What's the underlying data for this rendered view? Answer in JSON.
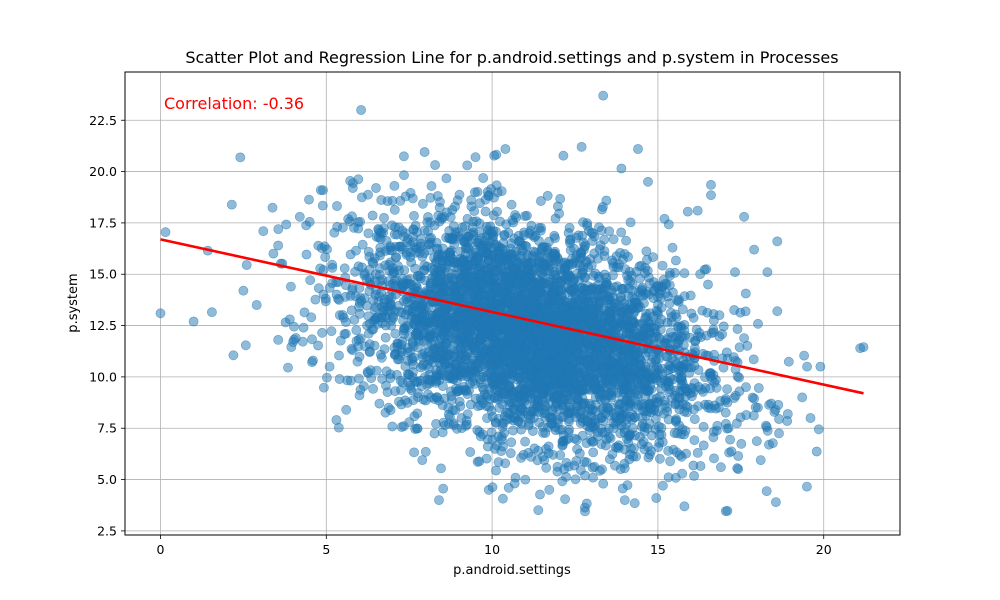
{
  "chart_data": {
    "type": "scatter",
    "title": "Scatter Plot and Regression Line for p.android.settings and p.system in Processes",
    "xlabel": "p.android.settings",
    "ylabel": "p.system",
    "xlim": [
      -1.07,
      22.3
    ],
    "ylim": [
      2.3,
      24.85
    ],
    "xticks": [
      0,
      5,
      10,
      15,
      20
    ],
    "yticks": [
      2.5,
      5.0,
      7.5,
      10.0,
      12.5,
      15.0,
      17.5,
      20.0,
      22.5
    ],
    "ytick_labels": [
      "2.5",
      "5.0",
      "7.5",
      "10.0",
      "12.5",
      "15.0",
      "17.5",
      "20.0",
      "22.5"
    ],
    "grid": true,
    "point_color": "#1f77b4",
    "line_color": "#ff0000",
    "annotation": {
      "text": "Correlation: -0.36",
      "color": "#ff0000",
      "x": 0.1,
      "y": 23.0
    },
    "cloud": {
      "center_x": 11.2,
      "center_y": 12.1,
      "sd_x": 2.6,
      "sd_y": 2.7,
      "correlation": -0.36
    },
    "regression": {
      "x": [
        0.0,
        21.2
      ],
      "y": [
        16.7,
        9.2
      ]
    },
    "points": [
      [
        0.0,
        13.1
      ],
      [
        0.15,
        17.05
      ],
      [
        1.0,
        12.7
      ],
      [
        1.55,
        13.15
      ],
      [
        2.2,
        11.05
      ],
      [
        2.6,
        15.45
      ],
      [
        2.5,
        14.2
      ],
      [
        2.9,
        13.5
      ],
      [
        3.1,
        17.1
      ],
      [
        3.55,
        11.8
      ],
      [
        3.55,
        16.4
      ],
      [
        4.2,
        17.8
      ],
      [
        4.5,
        17.55
      ],
      [
        4.9,
        19.1
      ],
      [
        5.1,
        10.5
      ],
      [
        5.6,
        8.4
      ],
      [
        5.8,
        19.2
      ],
      [
        6.0,
        9.1
      ],
      [
        6.5,
        19.2
      ],
      [
        7.5,
        7.8
      ],
      [
        8.0,
        6.35
      ],
      [
        8.4,
        4.0
      ],
      [
        9.25,
        20.3
      ],
      [
        9.5,
        20.7
      ],
      [
        9.9,
        4.5
      ],
      [
        10.5,
        4.6
      ],
      [
        10.4,
        21.1
      ],
      [
        11.0,
        5.0
      ],
      [
        12.2,
        4.05
      ],
      [
        12.8,
        5.2
      ],
      [
        12.7,
        21.2
      ],
      [
        12.8,
        3.45
      ],
      [
        13.35,
        4.8
      ],
      [
        13.35,
        23.7
      ],
      [
        13.9,
        20.15
      ],
      [
        14.0,
        4.0
      ],
      [
        14.3,
        3.85
      ],
      [
        14.4,
        21.1
      ],
      [
        14.7,
        19.5
      ],
      [
        14.95,
        4.1
      ],
      [
        15.15,
        4.7
      ],
      [
        15.2,
        17.7
      ],
      [
        15.8,
        3.7
      ],
      [
        15.9,
        18.05
      ],
      [
        16.2,
        18.1
      ],
      [
        16.6,
        19.35
      ],
      [
        16.6,
        18.85
      ],
      [
        17.6,
        17.8
      ],
      [
        18.1,
        5.95
      ],
      [
        18.35,
        6.7
      ],
      [
        18.55,
        8.4
      ],
      [
        18.65,
        7.95
      ],
      [
        18.6,
        16.6
      ],
      [
        18.9,
        7.85
      ],
      [
        18.65,
        7.25
      ],
      [
        19.35,
        9.0
      ],
      [
        19.5,
        10.5
      ],
      [
        19.6,
        8.0
      ],
      [
        19.85,
        7.45
      ],
      [
        19.9,
        10.5
      ],
      [
        21.1,
        11.4
      ],
      [
        21.2,
        11.45
      ],
      [
        18.6,
        13.2
      ],
      [
        18.3,
        15.1
      ],
      [
        17.9,
        16.2
      ],
      [
        4.0,
        11.7
      ],
      [
        3.9,
        12.8
      ],
      [
        4.6,
        10.8
      ],
      [
        5.4,
        9.9
      ],
      [
        6.6,
        8.7
      ],
      [
        16.9,
        5.6
      ],
      [
        16.2,
        6.3
      ]
    ]
  }
}
